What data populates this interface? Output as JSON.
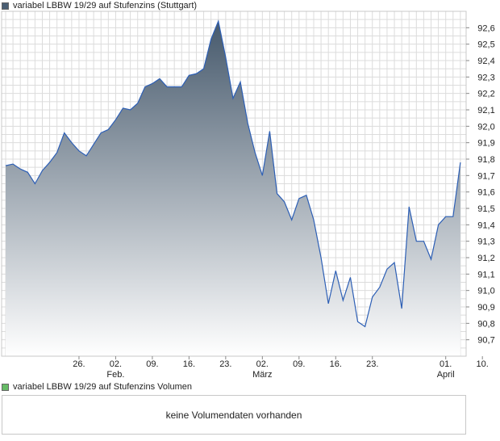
{
  "legend_price": {
    "label": "variabel LBBW 19/29 auf Stufenzins (Stuttgart)",
    "color": "#4a5f74"
  },
  "legend_volume": {
    "label": "variabel LBBW 19/29 auf Stufenzins Volumen",
    "color": "#66bb66"
  },
  "volume_panel": {
    "message": "keine Volumendaten vorhanden"
  },
  "chart_data": {
    "type": "area",
    "grid": true,
    "ylim": [
      90.6,
      92.7
    ],
    "y_ticks": [
      "90,7",
      "90,8",
      "90,9",
      "91,0",
      "91,1",
      "91,2",
      "91,3",
      "91,4",
      "91,5",
      "91,6",
      "91,7",
      "91,8",
      "91,9",
      "92,0",
      "92,1",
      "92,2",
      "92,3",
      "92,4",
      "92,5",
      "92,6"
    ],
    "x_ticks": [
      {
        "idx": 10,
        "label": "26."
      },
      {
        "idx": 15,
        "label": "02.",
        "sub": "Feb."
      },
      {
        "idx": 20,
        "label": "09."
      },
      {
        "idx": 25,
        "label": "16."
      },
      {
        "idx": 30,
        "label": "23."
      },
      {
        "idx": 35,
        "label": "02.",
        "sub": "März"
      },
      {
        "idx": 40,
        "label": "09."
      },
      {
        "idx": 45,
        "label": "16."
      },
      {
        "idx": 50,
        "label": "23."
      },
      {
        "idx": 60,
        "label": "01.",
        "sub": "April"
      },
      {
        "idx": 65,
        "label": "10."
      }
    ],
    "series": [
      {
        "line_color": "#2d5fb5",
        "fill_top": "#46596c",
        "fill_bottom": "#ffffff",
        "values": [
          91.76,
          91.77,
          91.74,
          91.72,
          91.65,
          91.73,
          91.78,
          91.84,
          91.96,
          91.9,
          91.85,
          91.82,
          91.89,
          91.96,
          91.98,
          92.04,
          92.11,
          92.1,
          92.14,
          92.24,
          92.26,
          92.29,
          92.24,
          92.24,
          92.24,
          92.31,
          92.32,
          92.35,
          92.53,
          92.64,
          92.42,
          92.17,
          92.27,
          92.02,
          91.84,
          91.7,
          91.97,
          91.59,
          91.54,
          91.43,
          91.56,
          91.58,
          91.43,
          91.2,
          90.92,
          91.12,
          90.94,
          91.08,
          90.81,
          90.78,
          90.96,
          91.02,
          91.13,
          91.17,
          90.89,
          91.51,
          91.3,
          91.3,
          91.19,
          91.4,
          91.45,
          91.45,
          91.78
        ]
      }
    ]
  }
}
